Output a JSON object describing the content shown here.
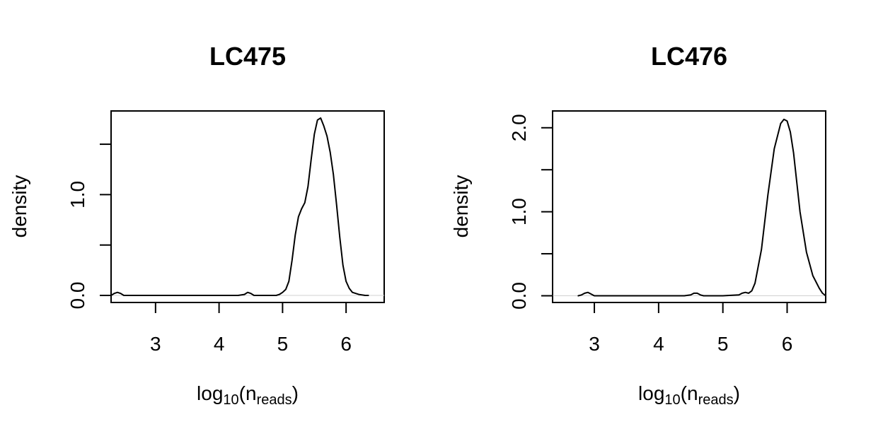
{
  "chart_data": [
    {
      "type": "line",
      "title": "LC475",
      "ylabel": "density",
      "xlabel": {
        "base": "log",
        "base_sub": "10",
        "paren_open": "(",
        "var": "n",
        "var_sub": "reads",
        "paren_close": ")"
      },
      "xlim": [
        2.3,
        6.6
      ],
      "ylim": [
        -0.07,
        1.83
      ],
      "xticks": [
        3,
        4,
        5,
        6
      ],
      "yticks": [
        0.0,
        0.5,
        1.0,
        1.5
      ],
      "ytick_labels": [
        "0.0",
        "",
        "1.0",
        ""
      ],
      "baseline": true,
      "series": [
        {
          "x": [
            2.3,
            2.35,
            2.4,
            2.45,
            2.5,
            2.6,
            3.0,
            3.5,
            4.0,
            4.3,
            4.4,
            4.45,
            4.5,
            4.55,
            4.6,
            4.8,
            4.9,
            4.95,
            5.0,
            5.05,
            5.1,
            5.15,
            5.2,
            5.25,
            5.3,
            5.35,
            5.4,
            5.45,
            5.5,
            5.55,
            5.6,
            5.65,
            5.7,
            5.75,
            5.8,
            5.85,
            5.9,
            5.95,
            6.0,
            6.05,
            6.1,
            6.2,
            6.3,
            6.35
          ],
          "y": [
            0.0,
            0.02,
            0.03,
            0.02,
            0.0,
            0.0,
            0.0,
            0.0,
            0.0,
            0.0,
            0.01,
            0.03,
            0.02,
            0.0,
            0.0,
            0.0,
            0.0,
            0.01,
            0.03,
            0.06,
            0.14,
            0.35,
            0.6,
            0.78,
            0.86,
            0.92,
            1.08,
            1.35,
            1.6,
            1.74,
            1.76,
            1.68,
            1.58,
            1.42,
            1.2,
            0.9,
            0.58,
            0.3,
            0.14,
            0.07,
            0.03,
            0.01,
            0.0,
            0.0
          ]
        }
      ]
    },
    {
      "type": "line",
      "title": "LC476",
      "ylabel": "density",
      "xlabel": {
        "base": "log",
        "base_sub": "10",
        "paren_open": "(",
        "var": "n",
        "var_sub": "reads",
        "paren_close": ")"
      },
      "xlim": [
        2.35,
        6.6
      ],
      "ylim": [
        -0.08,
        2.2
      ],
      "xticks": [
        3,
        4,
        5,
        6
      ],
      "yticks": [
        0.0,
        0.5,
        1.0,
        1.5,
        2.0
      ],
      "ytick_labels": [
        "0.0",
        "",
        "1.0",
        "",
        "2.0"
      ],
      "baseline": true,
      "series": [
        {
          "x": [
            2.75,
            2.8,
            2.85,
            2.9,
            2.95,
            3.0,
            3.1,
            3.5,
            4.0,
            4.4,
            4.5,
            4.55,
            4.6,
            4.65,
            4.7,
            5.0,
            5.25,
            5.3,
            5.35,
            5.4,
            5.45,
            5.5,
            5.6,
            5.7,
            5.8,
            5.9,
            5.95,
            6.0,
            6.05,
            6.1,
            6.2,
            6.3,
            6.4,
            6.5,
            6.55,
            6.6
          ],
          "y": [
            0.0,
            0.01,
            0.03,
            0.04,
            0.02,
            0.0,
            0.0,
            0.0,
            0.0,
            0.0,
            0.01,
            0.03,
            0.03,
            0.01,
            0.0,
            0.0,
            0.01,
            0.03,
            0.04,
            0.03,
            0.06,
            0.15,
            0.55,
            1.2,
            1.75,
            2.05,
            2.1,
            2.08,
            1.95,
            1.7,
            1.0,
            0.52,
            0.24,
            0.09,
            0.03,
            0.0
          ]
        }
      ]
    }
  ]
}
